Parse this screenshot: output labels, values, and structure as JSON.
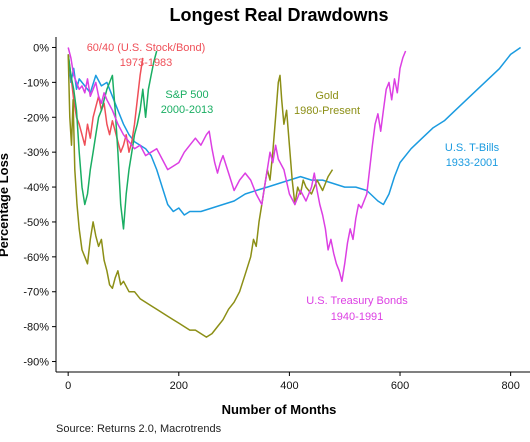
{
  "chart_data": {
    "type": "line",
    "title": "Longest Real Drawdowns",
    "xlabel": "Number of Months",
    "ylabel": "Percentage Loss",
    "xlim": [
      -22,
      835
    ],
    "ylim": [
      -93,
      3
    ],
    "x_ticks": [
      0,
      200,
      400,
      600,
      800
    ],
    "y_ticks": [
      0,
      -10,
      -20,
      -30,
      -40,
      -50,
      -60,
      -70,
      -80,
      -90
    ],
    "x_tick_labels": [
      "0",
      "200",
      "400",
      "600",
      "800"
    ],
    "y_tick_labels": [
      "0%",
      "-10%",
      "-20%",
      "-30%",
      "-40%",
      "-50%",
      "-60%",
      "-70%",
      "-80%",
      "-90%"
    ],
    "grid": false,
    "legend": "none",
    "series": [
      {
        "name": "U.S. T-Bills",
        "name_label": "U.S. T-Bills",
        "period_label": "1933-2001",
        "color": "#1b9be0",
        "points": [
          [
            0,
            -2
          ],
          [
            5,
            -10
          ],
          [
            10,
            -6
          ],
          [
            15,
            -12
          ],
          [
            20,
            -9
          ],
          [
            30,
            -11
          ],
          [
            40,
            -13
          ],
          [
            50,
            -8
          ],
          [
            60,
            -11
          ],
          [
            70,
            -10
          ],
          [
            80,
            -14
          ],
          [
            90,
            -18
          ],
          [
            100,
            -22
          ],
          [
            110,
            -25
          ],
          [
            120,
            -27
          ],
          [
            130,
            -28
          ],
          [
            140,
            -29
          ],
          [
            150,
            -31
          ],
          [
            160,
            -35
          ],
          [
            170,
            -40
          ],
          [
            180,
            -45
          ],
          [
            190,
            -47
          ],
          [
            200,
            -46
          ],
          [
            210,
            -48
          ],
          [
            220,
            -47
          ],
          [
            240,
            -47
          ],
          [
            260,
            -46
          ],
          [
            280,
            -45
          ],
          [
            300,
            -44
          ],
          [
            320,
            -42
          ],
          [
            340,
            -41
          ],
          [
            360,
            -40
          ],
          [
            380,
            -39
          ],
          [
            400,
            -38
          ],
          [
            420,
            -37
          ],
          [
            440,
            -38
          ],
          [
            460,
            -38
          ],
          [
            480,
            -39
          ],
          [
            500,
            -40
          ],
          [
            520,
            -40
          ],
          [
            540,
            -41
          ],
          [
            560,
            -44
          ],
          [
            570,
            -45
          ],
          [
            580,
            -42
          ],
          [
            590,
            -37
          ],
          [
            600,
            -33
          ],
          [
            620,
            -29
          ],
          [
            640,
            -26
          ],
          [
            660,
            -23
          ],
          [
            680,
            -21
          ],
          [
            700,
            -18
          ],
          [
            720,
            -15
          ],
          [
            740,
            -12
          ],
          [
            760,
            -9
          ],
          [
            780,
            -6
          ],
          [
            800,
            -2
          ],
          [
            818,
            0
          ]
        ]
      },
      {
        "name": "60/40 (U.S. Stock/Bond)",
        "name_label": "60/40 (U.S. Stock/Bond)",
        "period_label": "1973-1983",
        "color": "#ef4f58",
        "points": [
          [
            0,
            -2
          ],
          [
            5,
            -8
          ],
          [
            10,
            -15
          ],
          [
            15,
            -20
          ],
          [
            20,
            -22
          ],
          [
            25,
            -25
          ],
          [
            30,
            -28
          ],
          [
            35,
            -22
          ],
          [
            40,
            -26
          ],
          [
            45,
            -20
          ],
          [
            50,
            -17
          ],
          [
            55,
            -14
          ],
          [
            60,
            -18
          ],
          [
            65,
            -16
          ],
          [
            70,
            -22
          ],
          [
            75,
            -25
          ],
          [
            80,
            -21
          ],
          [
            85,
            -24
          ],
          [
            90,
            -27
          ],
          [
            95,
            -30
          ],
          [
            100,
            -28
          ],
          [
            105,
            -25
          ],
          [
            110,
            -30
          ],
          [
            115,
            -27
          ],
          [
            120,
            -22
          ],
          [
            125,
            -15
          ],
          [
            130,
            -8
          ],
          [
            135,
            -3
          ]
        ]
      },
      {
        "name": "S&P 500",
        "name_label": "S&P 500",
        "period_label": "2000-2013",
        "color": "#1aae63",
        "points": [
          [
            0,
            -2
          ],
          [
            5,
            -8
          ],
          [
            10,
            -12
          ],
          [
            15,
            -18
          ],
          [
            20,
            -30
          ],
          [
            25,
            -40
          ],
          [
            30,
            -45
          ],
          [
            35,
            -42
          ],
          [
            40,
            -35
          ],
          [
            45,
            -30
          ],
          [
            50,
            -25
          ],
          [
            55,
            -20
          ],
          [
            60,
            -18
          ],
          [
            65,
            -15
          ],
          [
            70,
            -12
          ],
          [
            75,
            -10
          ],
          [
            80,
            -8
          ],
          [
            85,
            -18
          ],
          [
            90,
            -30
          ],
          [
            95,
            -45
          ],
          [
            100,
            -52
          ],
          [
            105,
            -42
          ],
          [
            110,
            -35
          ],
          [
            115,
            -30
          ],
          [
            120,
            -25
          ],
          [
            125,
            -22
          ],
          [
            130,
            -18
          ],
          [
            135,
            -12
          ],
          [
            140,
            -20
          ],
          [
            145,
            -12
          ],
          [
            150,
            -8
          ],
          [
            155,
            -4
          ],
          [
            160,
            -1
          ]
        ]
      },
      {
        "name": "Gold",
        "name_label": "Gold",
        "period_label": "1980-Present",
        "color": "#8c8f16",
        "points": [
          [
            0,
            -2
          ],
          [
            3,
            -20
          ],
          [
            6,
            -28
          ],
          [
            9,
            -15
          ],
          [
            12,
            -35
          ],
          [
            16,
            -45
          ],
          [
            20,
            -52
          ],
          [
            25,
            -58
          ],
          [
            30,
            -60
          ],
          [
            35,
            -62
          ],
          [
            40,
            -55
          ],
          [
            45,
            -50
          ],
          [
            50,
            -54
          ],
          [
            55,
            -57
          ],
          [
            60,
            -55
          ],
          [
            65,
            -61
          ],
          [
            70,
            -64
          ],
          [
            75,
            -68
          ],
          [
            80,
            -69
          ],
          [
            85,
            -66
          ],
          [
            90,
            -64
          ],
          [
            95,
            -68
          ],
          [
            100,
            -67
          ],
          [
            110,
            -70
          ],
          [
            120,
            -70
          ],
          [
            130,
            -72
          ],
          [
            140,
            -73
          ],
          [
            150,
            -74
          ],
          [
            160,
            -75
          ],
          [
            170,
            -76
          ],
          [
            180,
            -77
          ],
          [
            190,
            -78
          ],
          [
            200,
            -79
          ],
          [
            210,
            -80
          ],
          [
            220,
            -81
          ],
          [
            230,
            -81
          ],
          [
            240,
            -82
          ],
          [
            250,
            -83
          ],
          [
            260,
            -82
          ],
          [
            270,
            -80
          ],
          [
            280,
            -78
          ],
          [
            290,
            -75
          ],
          [
            300,
            -73
          ],
          [
            310,
            -70
          ],
          [
            320,
            -65
          ],
          [
            330,
            -60
          ],
          [
            335,
            -55
          ],
          [
            340,
            -57
          ],
          [
            345,
            -50
          ],
          [
            350,
            -45
          ],
          [
            355,
            -40
          ],
          [
            360,
            -35
          ],
          [
            365,
            -38
          ],
          [
            370,
            -30
          ],
          [
            375,
            -20
          ],
          [
            380,
            -10
          ],
          [
            383,
            -8
          ],
          [
            386,
            -15
          ],
          [
            390,
            -22
          ],
          [
            395,
            -18
          ],
          [
            400,
            -28
          ],
          [
            405,
            -38
          ],
          [
            410,
            -45
          ],
          [
            415,
            -40
          ],
          [
            420,
            -42
          ],
          [
            425,
            -38
          ],
          [
            430,
            -40
          ],
          [
            440,
            -42
          ],
          [
            450,
            -38
          ],
          [
            460,
            -41
          ],
          [
            470,
            -37
          ],
          [
            478,
            -35
          ]
        ]
      },
      {
        "name": "U.S. Treasury Bonds",
        "name_label": "U.S. Treasury Bonds",
        "period_label": "1940-1991",
        "color": "#dc3fe3",
        "points": [
          [
            0,
            0
          ],
          [
            5,
            -3
          ],
          [
            10,
            -8
          ],
          [
            15,
            -10
          ],
          [
            20,
            -12
          ],
          [
            25,
            -11
          ],
          [
            30,
            -13
          ],
          [
            35,
            -9
          ],
          [
            40,
            -14
          ],
          [
            45,
            -12
          ],
          [
            50,
            -10
          ],
          [
            55,
            -14
          ],
          [
            60,
            -16
          ],
          [
            65,
            -13
          ],
          [
            70,
            -15
          ],
          [
            80,
            -18
          ],
          [
            90,
            -22
          ],
          [
            100,
            -25
          ],
          [
            110,
            -27
          ],
          [
            120,
            -29
          ],
          [
            130,
            -28
          ],
          [
            140,
            -31
          ],
          [
            150,
            -30
          ],
          [
            160,
            -29
          ],
          [
            170,
            -32
          ],
          [
            180,
            -35
          ],
          [
            190,
            -34
          ],
          [
            200,
            -33
          ],
          [
            210,
            -30
          ],
          [
            220,
            -28
          ],
          [
            230,
            -26
          ],
          [
            240,
            -28
          ],
          [
            250,
            -25
          ],
          [
            255,
            -24
          ],
          [
            260,
            -29
          ],
          [
            265,
            -33
          ],
          [
            270,
            -36
          ],
          [
            275,
            -33
          ],
          [
            280,
            -31
          ],
          [
            290,
            -36
          ],
          [
            300,
            -41
          ],
          [
            310,
            -38
          ],
          [
            320,
            -36
          ],
          [
            330,
            -38
          ],
          [
            340,
            -42
          ],
          [
            350,
            -45
          ],
          [
            355,
            -40
          ],
          [
            360,
            -35
          ],
          [
            365,
            -30
          ],
          [
            370,
            -33
          ],
          [
            375,
            -28
          ],
          [
            380,
            -32
          ],
          [
            390,
            -35
          ],
          [
            400,
            -42
          ],
          [
            410,
            -45
          ],
          [
            420,
            -41
          ],
          [
            430,
            -44
          ],
          [
            440,
            -40
          ],
          [
            445,
            -36
          ],
          [
            450,
            -41
          ],
          [
            455,
            -45
          ],
          [
            460,
            -48
          ],
          [
            465,
            -52
          ],
          [
            470,
            -58
          ],
          [
            475,
            -55
          ],
          [
            480,
            -59
          ],
          [
            485,
            -62
          ],
          [
            490,
            -64
          ],
          [
            495,
            -67
          ],
          [
            500,
            -62
          ],
          [
            505,
            -56
          ],
          [
            510,
            -52
          ],
          [
            515,
            -55
          ],
          [
            520,
            -49
          ],
          [
            525,
            -45
          ],
          [
            530,
            -46
          ],
          [
            540,
            -42
          ],
          [
            545,
            -35
          ],
          [
            550,
            -28
          ],
          [
            555,
            -22
          ],
          [
            560,
            -19
          ],
          [
            565,
            -24
          ],
          [
            570,
            -18
          ],
          [
            575,
            -12
          ],
          [
            580,
            -10
          ],
          [
            585,
            -15
          ],
          [
            590,
            -9
          ],
          [
            595,
            -13
          ],
          [
            600,
            -6
          ],
          [
            605,
            -3
          ],
          [
            610,
            -1
          ]
        ]
      }
    ],
    "source": "Source: Returns 2.0, Macrotrends"
  }
}
